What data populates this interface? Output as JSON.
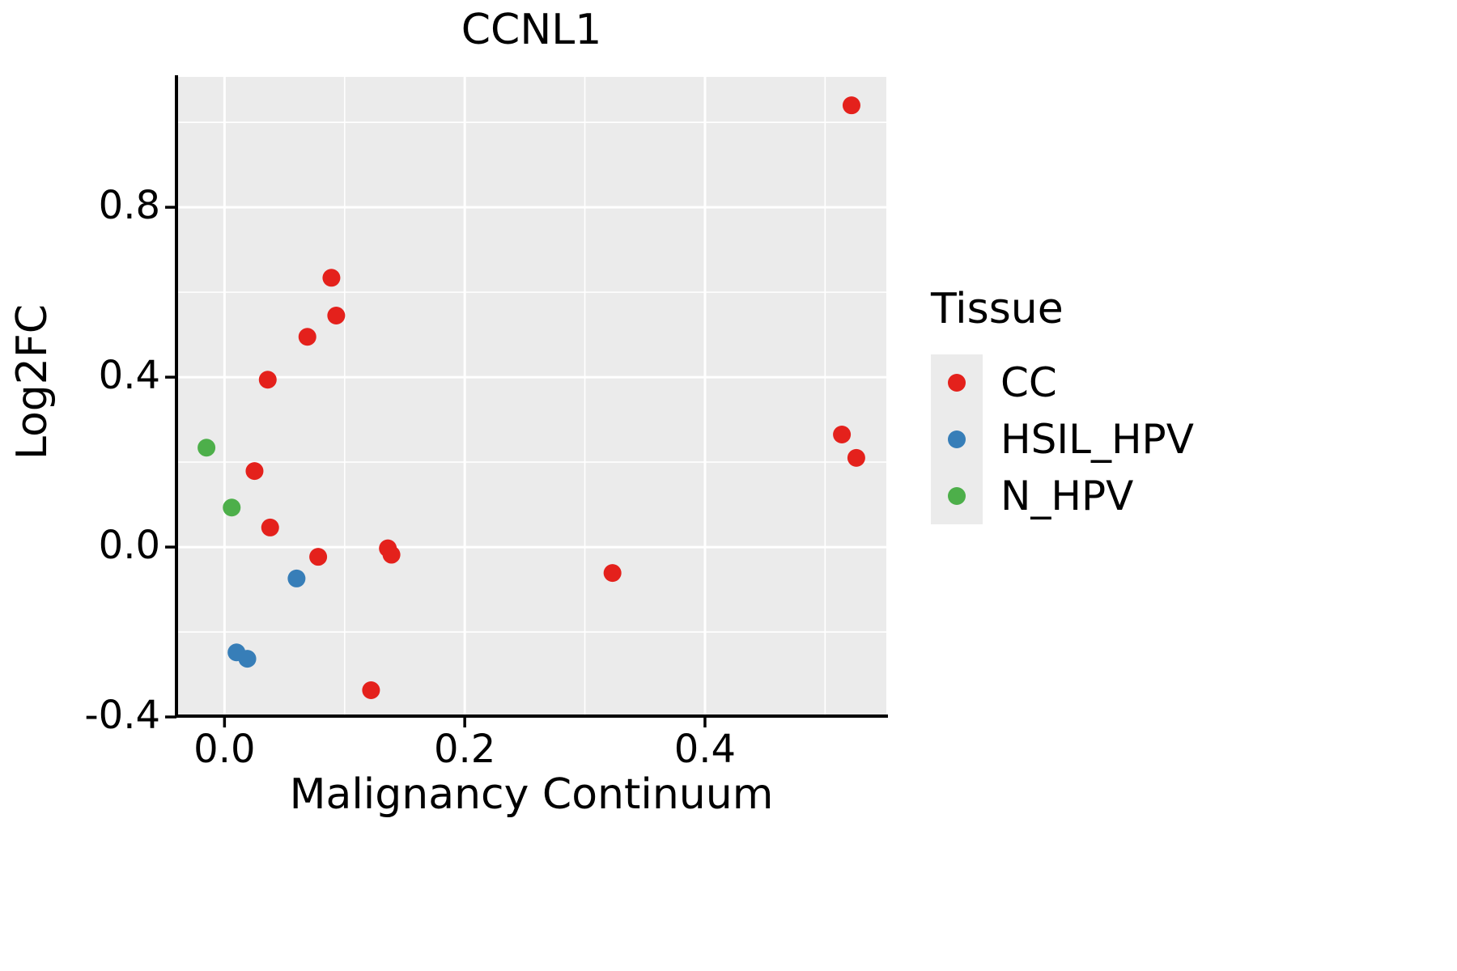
{
  "chart_data": {
    "type": "scatter",
    "title": "CCNL1",
    "xlabel": "Malignancy Continuum",
    "ylabel": "Log2FC",
    "xlim": [
      -0.04,
      0.551
    ],
    "ylim": [
      -0.398,
      1.107
    ],
    "grid": true,
    "panel_background": "#EBEBEB",
    "grid_color": "#FFFFFF",
    "axis_color": "#000000",
    "x_ticks": {
      "values": [
        0.0,
        0.2,
        0.4
      ],
      "labels": [
        "0.0",
        "0.2",
        "0.4"
      ],
      "minor": [
        0.1,
        0.3,
        0.5
      ]
    },
    "y_ticks": {
      "values": [
        -0.4,
        0.0,
        0.4,
        0.8
      ],
      "labels": [
        "-0.4",
        "0.0",
        "0.4",
        "0.8"
      ],
      "minor": [
        -0.2,
        0.2,
        0.6,
        1.0
      ]
    },
    "legend": {
      "title": "Tissue",
      "position": "right"
    },
    "series": [
      {
        "name": "CC",
        "color": "#E4211C",
        "points": [
          [
            0.522,
            1.04
          ],
          [
            0.089,
            0.634
          ],
          [
            0.093,
            0.545
          ],
          [
            0.069,
            0.495
          ],
          [
            0.036,
            0.394
          ],
          [
            0.514,
            0.265
          ],
          [
            0.526,
            0.21
          ],
          [
            0.025,
            0.179
          ],
          [
            0.038,
            0.046
          ],
          [
            0.078,
            -0.023
          ],
          [
            0.136,
            -0.003
          ],
          [
            0.139,
            -0.018
          ],
          [
            0.323,
            -0.061
          ],
          [
            0.122,
            -0.337
          ]
        ]
      },
      {
        "name": "HSIL_HPV",
        "color": "#377EB8",
        "points": [
          [
            0.06,
            -0.074
          ],
          [
            0.01,
            -0.248
          ],
          [
            0.019,
            -0.263
          ]
        ]
      },
      {
        "name": "N_HPV",
        "color": "#4DAF4A",
        "points": [
          [
            -0.015,
            0.234
          ],
          [
            0.006,
            0.093
          ]
        ]
      }
    ]
  }
}
